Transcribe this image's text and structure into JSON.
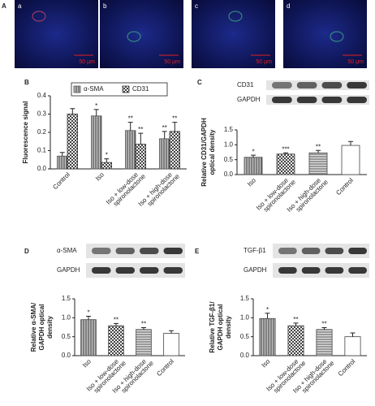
{
  "panel_a": {
    "panel": "A",
    "images": [
      {
        "label": "a",
        "scale": "50 μm"
      },
      {
        "label": "b",
        "scale": "50 μm"
      },
      {
        "label": "c",
        "scale": "50 μm"
      },
      {
        "label": "d",
        "scale": "50 μm"
      }
    ]
  },
  "chart_data": [
    {
      "type": "bar",
      "panel": "B",
      "ylabel": [
        "Fluorescence signal"
      ],
      "categories": [
        [
          "Control"
        ],
        [
          "Iso"
        ],
        [
          "Iso + low-dose",
          "spironolactone"
        ],
        [
          "Iso + high-dose",
          "spironolactone"
        ]
      ],
      "series": [
        {
          "name": "α-SMA",
          "color": "#555555",
          "pattern": "vertical",
          "values": [
            0.07,
            0.29,
            0.21,
            0.165
          ],
          "errors": [
            0.02,
            0.035,
            0.045,
            0.04
          ],
          "annotations": [
            null,
            "*",
            "**",
            "**"
          ]
        },
        {
          "name": "CD31",
          "color": "#333333",
          "pattern": "checker",
          "values": [
            0.3,
            0.035,
            0.135,
            0.205
          ],
          "errors": [
            0.03,
            0.02,
            0.06,
            0.05
          ],
          "annotations": [
            null,
            "*",
            "**",
            "**"
          ]
        }
      ],
      "ylim": [
        0,
        0.4
      ],
      "yticks": [
        {
          "value": 0,
          "label": "0.0"
        },
        0.1,
        0.2,
        0.3,
        0.4
      ],
      "legend": "upper center"
    },
    {
      "type": "bar",
      "panel": "C",
      "blots": [
        "CD31",
        "GAPDH"
      ],
      "ylabel": [
        "Relative CD31/GAPDH",
        "optical density"
      ],
      "categories": [
        [
          "Iso"
        ],
        [
          "Iso + low-dose",
          "spironolactone"
        ],
        [
          "Iso + high-dose",
          "spironolactone"
        ],
        [
          "Control"
        ]
      ],
      "patterns": [
        "vertical",
        "checker",
        "horizontal",
        "plain"
      ],
      "color": "#444444",
      "values": [
        0.58,
        0.69,
        0.73,
        0.98
      ],
      "errors": [
        0.07,
        0.04,
        0.08,
        0.13
      ],
      "annotations": [
        "*",
        "***",
        "**",
        null
      ],
      "ylim": [
        0,
        1.5
      ],
      "yticks": [
        {
          "value": 0,
          "label": "0.0"
        },
        0.5,
        {
          "value": 1,
          "label": "1.0"
        },
        1.5
      ]
    },
    {
      "type": "bar",
      "panel": "D",
      "blots": [
        "α-SMA",
        "GAPDH"
      ],
      "ylabel": [
        "Relative α-SMA/",
        "GAPDH optical",
        "density"
      ],
      "categories": [
        [
          "Iso"
        ],
        [
          "Iso + low-dose",
          "spironolactone"
        ],
        [
          "Iso + high-dose",
          "spironolactone"
        ],
        [
          "Control"
        ]
      ],
      "patterns": [
        "vertical",
        "checker",
        "horizontal",
        "plain"
      ],
      "color": "#444444",
      "values": [
        0.95,
        0.79,
        0.69,
        0.59
      ],
      "errors": [
        0.09,
        0.06,
        0.05,
        0.07
      ],
      "annotations": [
        "*",
        "**",
        "**",
        null
      ],
      "ylim": [
        0,
        1.5
      ],
      "yticks": [
        {
          "value": 0,
          "label": "0.0"
        },
        0.5,
        {
          "value": 1,
          "label": "1.0"
        },
        1.5
      ]
    },
    {
      "type": "bar",
      "panel": "E",
      "blots": [
        "TGF-β1",
        "GAPDH"
      ],
      "ylabel": [
        "Relative TGF-β1/",
        "GAPDH optical",
        "density"
      ],
      "categories": [
        [
          "Iso"
        ],
        [
          "Iso + low-dose",
          "spironolactone"
        ],
        [
          "Iso + high-dose",
          "spironolactone"
        ],
        [
          "Control"
        ]
      ],
      "patterns": [
        "vertical",
        "checker",
        "horizontal",
        "plain"
      ],
      "color": "#444444",
      "values": [
        0.98,
        0.79,
        0.69,
        0.5
      ],
      "errors": [
        0.14,
        0.07,
        0.05,
        0.1
      ],
      "annotations": [
        "*",
        "**",
        "**",
        null
      ],
      "ylim": [
        0,
        1.5
      ],
      "yticks": [
        {
          "value": 0,
          "label": "0.0"
        },
        0.5,
        {
          "value": 1,
          "label": "1.0"
        },
        1.5
      ]
    }
  ]
}
